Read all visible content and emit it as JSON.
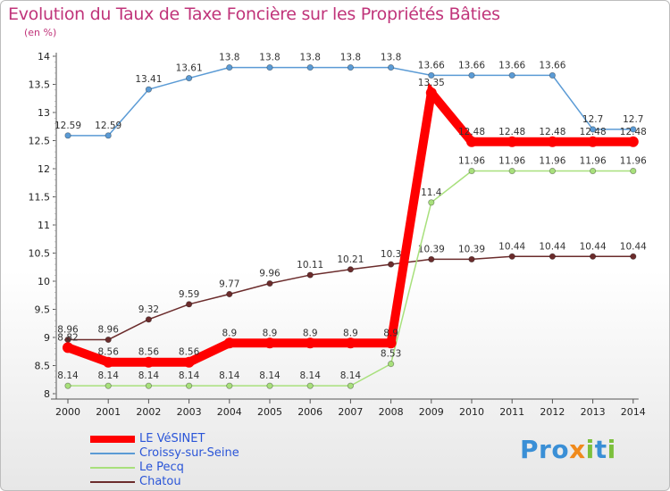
{
  "title": "Evolution du Taux de Taxe Foncière sur les Propriétés Bâties",
  "subtitle": "(en %)",
  "logo": {
    "text": "Proxiti",
    "letter_colors": [
      "#3a8fd6",
      "#3a8fd6",
      "#3a8fd6",
      "#f08a1c",
      "#7cc03c",
      "#3a8fd6",
      "#7cc03c"
    ]
  },
  "chart_data": {
    "type": "line",
    "title": "Evolution du Taux de Taxe Foncière sur les Propriétés Bâties",
    "subtitle": "(en %)",
    "x": [
      "2000",
      "2001",
      "2002",
      "2003",
      "2004",
      "2005",
      "2006",
      "2007",
      "2008",
      "2009",
      "2010",
      "2011",
      "2012",
      "2013",
      "2014"
    ],
    "ylim": [
      8,
      14
    ],
    "yticks": [
      "8",
      "8.5",
      "9",
      "9.5",
      "10",
      "10.5",
      "11",
      "11.5",
      "12",
      "12.5",
      "13",
      "13.5",
      "14"
    ],
    "grid": false,
    "legend_position": "bottom-left",
    "series": [
      {
        "name": "Chatou",
        "color": "#6b2c2c",
        "values": [
          8.96,
          8.96,
          9.32,
          9.59,
          9.77,
          9.96,
          10.11,
          10.21,
          10.3,
          10.39,
          10.39,
          10.44,
          10.44,
          10.44,
          10.44
        ],
        "labels": [
          "8.96",
          "8.96",
          "9.32",
          "9.59",
          "9.77",
          "9.96",
          "10.11",
          "10.21",
          "10.3",
          "10.39",
          "10.39",
          "10.44",
          "10.44",
          "10.44",
          "10.44"
        ]
      },
      {
        "name": "Le Pecq",
        "color": "#a8e07c",
        "values": [
          8.14,
          8.14,
          8.14,
          8.14,
          8.14,
          8.14,
          8.14,
          8.14,
          8.53,
          11.4,
          11.96,
          11.96,
          11.96,
          11.96,
          11.96
        ],
        "labels": [
          "8.14",
          "8.14",
          "8.14",
          "8.14",
          "8.14",
          "8.14",
          "8.14",
          "8.14",
          "8.53",
          "11.4",
          "11.96",
          "11.96",
          "11.96",
          "11.96",
          "11.96"
        ]
      },
      {
        "name": "Croissy-sur-Seine",
        "color": "#5b9bd5",
        "values": [
          12.59,
          12.59,
          13.41,
          13.61,
          13.8,
          13.8,
          13.8,
          13.8,
          13.8,
          13.66,
          13.66,
          13.66,
          13.66,
          12.7,
          12.7
        ],
        "labels": [
          "12.59",
          "12.59",
          "13.41",
          "13.61",
          "13.8",
          "13.8",
          "13.8",
          "13.8",
          "13.8",
          "13.66",
          "13.66",
          "13.66",
          "13.66",
          "12.7",
          "12.7"
        ]
      },
      {
        "name": "LE VéSINET",
        "color": "#ff0000",
        "values": [
          8.82,
          8.56,
          8.56,
          8.56,
          8.9,
          8.9,
          8.9,
          8.9,
          8.9,
          13.35,
          12.48,
          12.48,
          12.48,
          12.48,
          12.48
        ],
        "labels": [
          "8.82",
          "8.56",
          "8.56",
          "8.56",
          "8.9",
          "8.9",
          "8.9",
          "8.9",
          "8.9",
          "13.35",
          "12.48",
          "12.48",
          "12.48",
          "12.48",
          "12.48"
        ]
      }
    ],
    "legend": [
      "LE VéSINET",
      "Croissy-sur-Seine",
      "Le Pecq",
      "Chatou"
    ]
  }
}
